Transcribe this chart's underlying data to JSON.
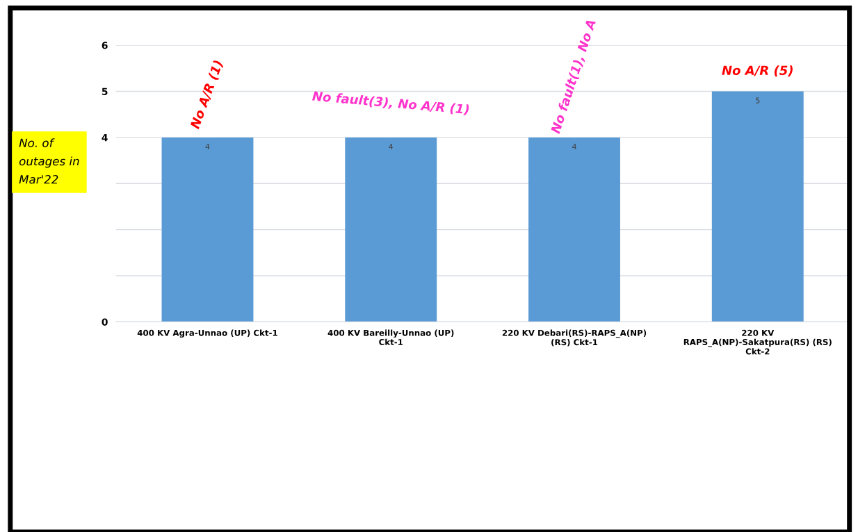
{
  "chart_data": {
    "type": "bar",
    "ylabel": "No. of outages in Mar'22",
    "categories": [
      "400 KV Agra-Unnao (UP) Ckt-1",
      "400 KV Bareilly-Unnao (UP) Ckt-1",
      "220 KV Debari(RS)-RAPS_A(NP) (RS) Ckt-1",
      "220 KV RAPS_A(NP)-Sakatpura(RS) (RS) Ckt-2"
    ],
    "values": [
      4,
      4,
      4,
      5
    ],
    "color": "#5b9bd5",
    "data_labels": true,
    "ylim": [
      0,
      6
    ],
    "yticks": [
      0,
      {
        "value": 1,
        "label": null
      },
      {
        "value": 2,
        "label": null
      },
      {
        "value": 3,
        "label": null
      },
      4,
      5,
      6
    ],
    "grid": "y",
    "annotations": [
      {
        "text": "No A/R (1)",
        "x": "400 KV Agra-Unnao (UP) Ckt-1",
        "y": 4
      },
      {
        "text": "No fault(3), No A/R (1)",
        "x": "400 KV Bareilly-Unnao (UP) Ckt-1",
        "y": 4
      },
      {
        "text": "No fault(1), No A",
        "x": "220 KV Debari(RS)-RAPS_A(NP) (RS) Ckt-1",
        "y": 4
      },
      {
        "text": "No A/R (5)",
        "x": "220 KV RAPS_A(NP)-Sakatpura(RS) (RS) Ckt-2",
        "y": 5
      }
    ]
  }
}
